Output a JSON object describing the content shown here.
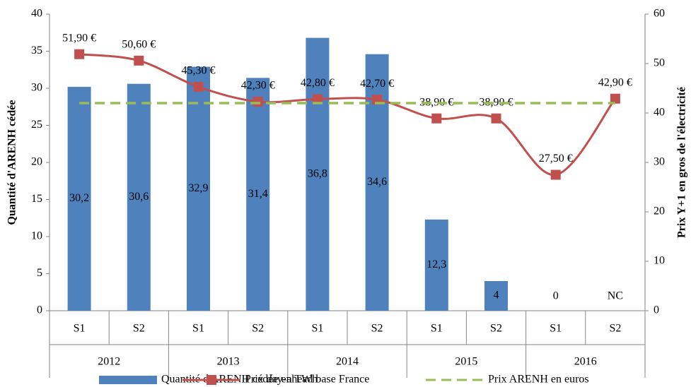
{
  "chart_data": {
    "type": "bar",
    "ylabel": "Quantité d'ARENH cédée",
    "y2label": "Prix Y+1 en gros de l'électricité",
    "categories": [
      "S1",
      "S2",
      "S1",
      "S2",
      "S1",
      "S2",
      "S1",
      "S2",
      "S1",
      "S2"
    ],
    "groups": [
      "2012",
      "2013",
      "2014",
      "2015",
      "2016"
    ],
    "ylim": [
      0,
      40
    ],
    "yticks": [
      0,
      5,
      10,
      15,
      20,
      25,
      30,
      35,
      40
    ],
    "y2lim": [
      0,
      60
    ],
    "y2ticks": [
      0,
      10,
      20,
      30,
      40,
      50,
      60
    ],
    "series": [
      {
        "name": "Quantité d'ARENH cédée en TWh",
        "type": "bar",
        "color": "#4f81bd",
        "values": [
          30.2,
          30.6,
          32.9,
          31.4,
          36.8,
          34.6,
          12.3,
          4,
          0,
          null
        ],
        "value_labels": [
          "30,2",
          "30,6",
          "32,9",
          "31,4",
          "36,8",
          "34,6",
          "12,3",
          "4",
          "0",
          "NC"
        ]
      },
      {
        "name": "Prix day-ahead base France",
        "type": "line",
        "axis": "y2",
        "color": "#c0504d",
        "smooth": true,
        "marker": "square",
        "values": [
          51.9,
          50.6,
          45.3,
          42.3,
          42.8,
          42.7,
          38.9,
          38.9,
          27.5,
          42.9
        ],
        "value_labels": [
          "51,90 €",
          "50,60 €",
          "45,30 €",
          "42,30 €",
          "42,80 €",
          "42,70 €",
          "38,90 €",
          "38,90 €",
          "27,50 €",
          "42,90 €"
        ]
      },
      {
        "name": "Prix ARENH en euros",
        "type": "line",
        "axis": "y2",
        "color": "#9bbb59",
        "dashed": true,
        "values": [
          42,
          42,
          42,
          42,
          42,
          42,
          42,
          42,
          42,
          42
        ]
      }
    ]
  }
}
